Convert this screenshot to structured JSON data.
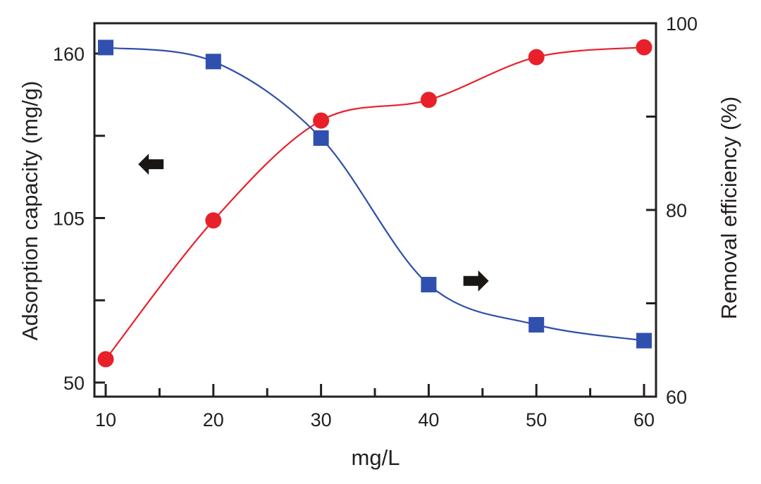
{
  "chart_data": {
    "type": "line",
    "title": "",
    "xlabel": "mg/L",
    "ylabel": "Adsorption capacity (mg/g)",
    "y2label": "Removal efficiency (%)",
    "x": [
      10,
      20,
      30,
      40,
      50,
      60
    ],
    "xlim": [
      9,
      61
    ],
    "ylim": [
      46,
      173
    ],
    "y2lim": [
      60,
      100
    ],
    "x_ticks": [
      10,
      20,
      30,
      40,
      50,
      60
    ],
    "x_tick_labels": [
      "10",
      "20",
      "30",
      "40",
      "50",
      "60"
    ],
    "x_minor_ticks": [
      15,
      25,
      35,
      45,
      55
    ],
    "y_ticks": [
      50,
      105,
      160
    ],
    "y_tick_labels": [
      "50",
      "105",
      "160"
    ],
    "y_minor_ticks": [
      77.5,
      132.5
    ],
    "y2_ticks": [
      60,
      80,
      100
    ],
    "y2_tick_labels": [
      "60",
      "80",
      "100"
    ],
    "y2_minor_ticks": [
      70,
      90
    ],
    "grid": false,
    "series": [
      {
        "name": "Adsorption capacity",
        "axis": "left",
        "marker": "circle",
        "color": "#e8202a",
        "values": [
          57.8,
          104.2,
          137.6,
          144.5,
          158.8,
          162.1
        ]
      },
      {
        "name": "Removal efficiency",
        "axis": "right",
        "marker": "square",
        "color": "#3050b0",
        "values": [
          97.4,
          95.9,
          87.7,
          72.0,
          67.7,
          66.0
        ]
      }
    ],
    "annotations": [
      {
        "type": "arrow",
        "direction": "left",
        "refers_to": "Adsorption capacity",
        "at_x": 14.2,
        "at_y": 123
      },
      {
        "type": "arrow",
        "direction": "right",
        "refers_to": "Removal efficiency",
        "at_x": 44.4,
        "at_y2": 72.4
      }
    ]
  }
}
